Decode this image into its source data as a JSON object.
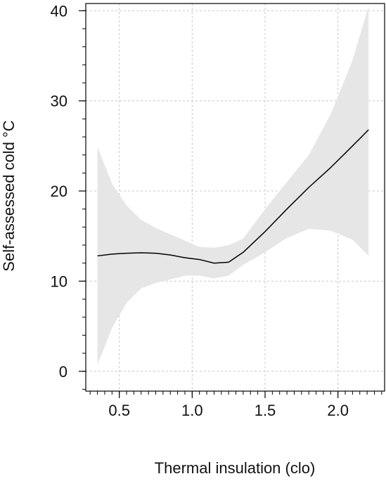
{
  "chart_data": {
    "type": "line",
    "title": "",
    "xlabel": "Thermal insulation (clo)",
    "ylabel": "Self-assessed cold  °C",
    "xlim": [
      0.27,
      2.32
    ],
    "ylim": [
      -2.2,
      40.8
    ],
    "x_ticks": [
      "0.5",
      "1.0",
      "1.5",
      "2.0"
    ],
    "y_ticks": [
      "0",
      "10",
      "20",
      "30",
      "40"
    ],
    "x_minor_step": 0.05,
    "y_minor_step": 2,
    "grid": true,
    "grid_style": "dotted",
    "series": [
      {
        "x": [
          0.35,
          0.45,
          0.55,
          0.65,
          0.75,
          0.85,
          0.95,
          1.05,
          1.15,
          1.25,
          1.35,
          1.5,
          1.65,
          1.8,
          1.95,
          2.1,
          2.21
        ],
        "values": [
          12.8,
          13.0,
          13.1,
          13.15,
          13.1,
          12.9,
          12.6,
          12.4,
          12.0,
          12.1,
          13.2,
          15.5,
          18.0,
          20.4,
          22.6,
          25.0,
          26.8
        ],
        "lower": [
          0.7,
          4.8,
          7.6,
          9.2,
          9.8,
          10.2,
          10.6,
          10.6,
          10.3,
          10.6,
          11.8,
          13.2,
          14.8,
          15.8,
          15.6,
          14.6,
          12.8
        ],
        "upper": [
          24.9,
          20.8,
          18.4,
          16.8,
          15.9,
          15.2,
          14.5,
          13.8,
          13.7,
          14.0,
          14.7,
          18.0,
          21.0,
          24.0,
          28.5,
          34.5,
          40.5
        ],
        "line_color": "#000000",
        "band_color": "#e6e6e6"
      }
    ]
  }
}
